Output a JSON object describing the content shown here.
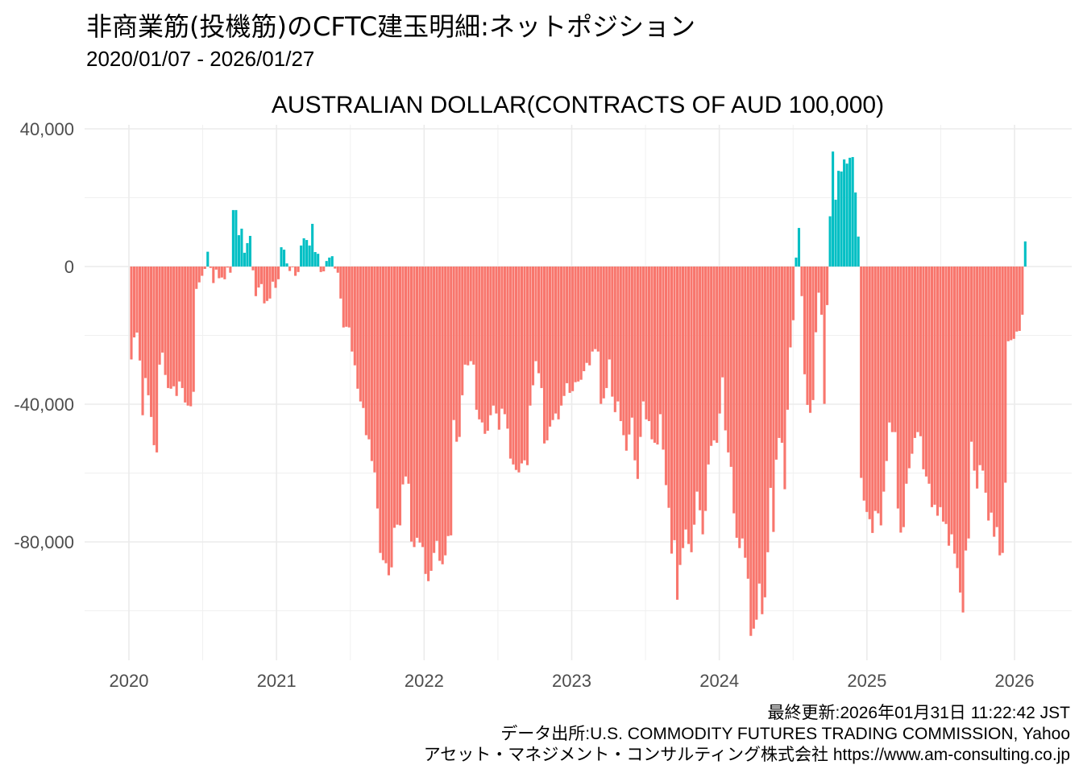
{
  "title": "非商業筋(投機筋)のCFTC建玉明細:ネットポジション",
  "subtitle": "2020/01/07 - 2026/01/27",
  "captions": {
    "updated": "最終更新:2026年01月31日 11:22:42 JST",
    "source": "データ出所:U.S. COMMODITY FUTURES TRADING COMMISSION, Yahoo",
    "credit": "アセット・マネジメント・コンサルティング株式会社 https://www.am-consulting.co.jp"
  },
  "chart_data": {
    "type": "bar",
    "title": "AUSTRALIAN DOLLAR(CONTRACTS OF AUD 100,000)",
    "xlabel": "",
    "ylabel": "",
    "frequency": "weekly",
    "first_date": "2020-01-07",
    "last_date": "2026-01-27",
    "ylim": [
      -112000,
      42000
    ],
    "y_ticks": [
      40000,
      0,
      -40000,
      -80000
    ],
    "y_tick_labels": [
      "40,000",
      "0",
      "-40,000",
      "-80,000"
    ],
    "x_ticks": [
      "2020",
      "2021",
      "2022",
      "2023",
      "2024",
      "2025",
      "2026"
    ],
    "grid": true,
    "legend": "none",
    "colors": {
      "negative": "#F8766D",
      "positive": "#00BFC4"
    },
    "values": [
      -27000,
      -20600,
      -19200,
      -27300,
      -43200,
      -32400,
      -37400,
      -43700,
      -51900,
      -54000,
      -28500,
      -25000,
      -31500,
      -35300,
      -35500,
      -34800,
      -37600,
      -33400,
      -35300,
      -39500,
      -40400,
      -40600,
      -36400,
      -6500,
      -4600,
      -2700,
      -700,
      4300,
      -400,
      -4800,
      -900,
      -3400,
      -3200,
      -3700,
      -300,
      -1800,
      16400,
      16400,
      9100,
      11000,
      4000,
      6800,
      8900,
      -1100,
      -8600,
      -6100,
      -5100,
      -10700,
      -10000,
      -9300,
      -4400,
      -6200,
      -3700,
      5600,
      4900,
      900,
      -1300,
      -200,
      -2700,
      -1600,
      6100,
      8200,
      7700,
      6100,
      12400,
      4200,
      3700,
      -1600,
      -1400,
      1600,
      2600,
      3000,
      -600,
      -1800,
      -9300,
      -17700,
      -17500,
      -17700,
      -24700,
      -28700,
      -35500,
      -39200,
      -41100,
      -49000,
      -50200,
      -56500,
      -59800,
      -70300,
      -83200,
      -85300,
      -86200,
      -89700,
      -87400,
      -75900,
      -75000,
      -75200,
      -63300,
      -61000,
      -63100,
      -79900,
      -81500,
      -78800,
      -80200,
      -81500,
      -89300,
      -91400,
      -88400,
      -83200,
      -79700,
      -85500,
      -86500,
      -83900,
      -78300,
      -78100,
      -44600,
      -50900,
      -49500,
      -37400,
      -28500,
      -28700,
      -27500,
      -28500,
      -41600,
      -44400,
      -45300,
      -48600,
      -47700,
      -43200,
      -40400,
      -42700,
      -47400,
      -41300,
      -42900,
      -47100,
      -55800,
      -57500,
      -59100,
      -59800,
      -57200,
      -56300,
      -57700,
      -40400,
      -34500,
      -27500,
      -31000,
      -35300,
      -51400,
      -50500,
      -46500,
      -44600,
      -42700,
      -44400,
      -40400,
      -37600,
      -33900,
      -36700,
      -36200,
      -33600,
      -33400,
      -32900,
      -30400,
      -28000,
      -28700,
      -24700,
      -24000,
      -24700,
      -39900,
      -38300,
      -35300,
      -27000,
      -37800,
      -42300,
      -39200,
      -44900,
      -49000,
      -53500,
      -48800,
      -43900,
      -56300,
      -61700,
      -49500,
      -39200,
      -44400,
      -44900,
      -50200,
      -51200,
      -51700,
      -42900,
      -53200,
      -63500,
      -70100,
      -83400,
      -79500,
      -96800,
      -86700,
      -81800,
      -76400,
      -80600,
      -83000,
      -75000,
      -65400,
      -70800,
      -77800,
      -71000,
      -57500,
      -52100,
      -50500,
      -51200,
      -42700,
      -32200,
      -47600,
      -54000,
      -58200,
      -71700,
      -78800,
      -81800,
      -79000,
      -84600,
      -90700,
      -107300,
      -105200,
      -102600,
      -92100,
      -101000,
      -96100,
      -83000,
      -64300,
      -77100,
      -56100,
      -49800,
      -51200,
      -64700,
      -41600,
      -23500,
      -15600,
      2600,
      11200,
      -8600,
      -31300,
      -40200,
      -42500,
      -38800,
      -19100,
      -7600,
      -14000,
      -39900,
      -11200,
      14600,
      33400,
      19400,
      27800,
      27600,
      31100,
      29900,
      31600,
      31800,
      21500,
      8700,
      -61400,
      -68000,
      -71300,
      -73400,
      -77400,
      -71000,
      -71700,
      -75200,
      -65400,
      -56500,
      -45300,
      -48100,
      -48100,
      -70300,
      -77300,
      -75700,
      -63100,
      -58600,
      -54400,
      -49800,
      -48100,
      -49300,
      -58900,
      -61000,
      -63100,
      -69900,
      -69200,
      -72400,
      -69900,
      -74100,
      -74800,
      -81100,
      -77800,
      -83400,
      -87600,
      -94700,
      -100500,
      -82500,
      -79000,
      -50900,
      -59300,
      -64500,
      -57700,
      -59300,
      -65700,
      -73800,
      -71500,
      -78500,
      -75700,
      -83900,
      -83200,
      -62800,
      -21700,
      -21400,
      -21000,
      -18900,
      -18700,
      -14000,
      7300
    ]
  }
}
